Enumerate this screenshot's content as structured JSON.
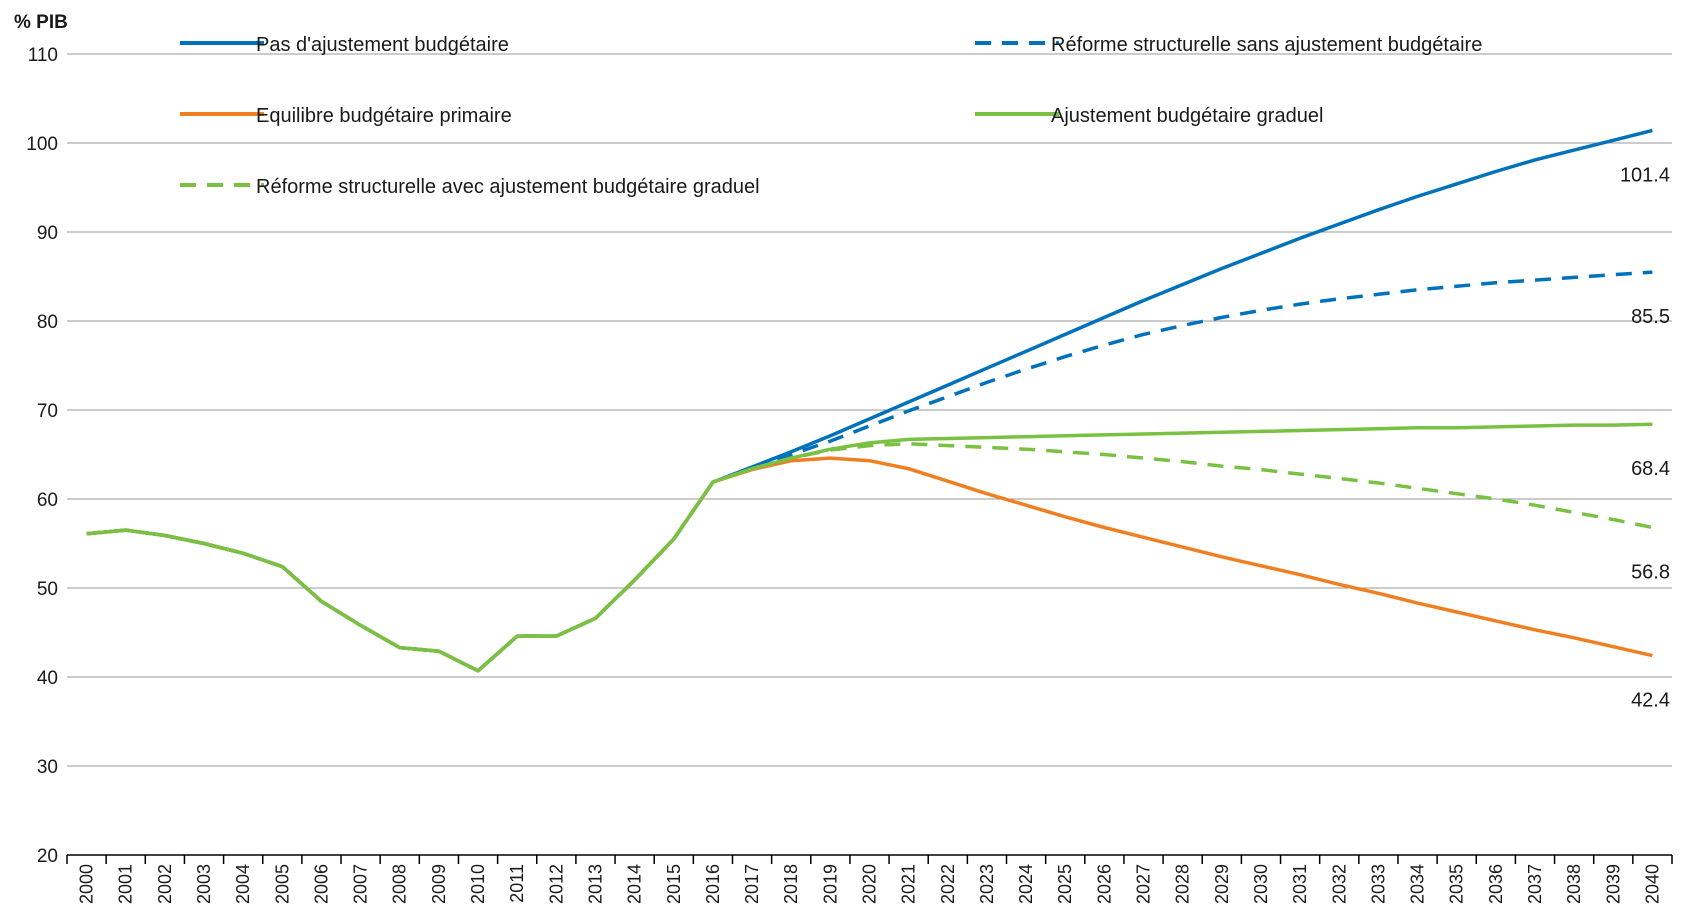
{
  "chart_data": {
    "type": "line",
    "unit_label": "% PIB",
    "ylim": [
      20,
      110
    ],
    "yticks": [
      20,
      30,
      40,
      50,
      60,
      70,
      80,
      90,
      100,
      110
    ],
    "grid": true,
    "legend_position": "top",
    "x": [
      "2000",
      "2001",
      "2002",
      "2003",
      "2004",
      "2005",
      "2006",
      "2007",
      "2008",
      "2009",
      "2010",
      "2011",
      "2012",
      "2013",
      "2014",
      "2015",
      "2016",
      "2017",
      "2018",
      "2019",
      "2020",
      "2021",
      "2022",
      "2023",
      "2024",
      "2025",
      "2026",
      "2027",
      "2028",
      "2029",
      "2030",
      "2031",
      "2032",
      "2033",
      "2034",
      "2035",
      "2036",
      "2037",
      "2038",
      "2039",
      "2040"
    ],
    "series": [
      {
        "name": "Pas d'ajustement budgétaire",
        "color": "#0072bc",
        "dash": "solid",
        "end_label": "101.4",
        "values": [
          56.1,
          56.5,
          55.9,
          55.0,
          53.9,
          52.4,
          48.5,
          45.8,
          43.3,
          42.9,
          40.7,
          44.6,
          44.6,
          46.6,
          50.9,
          55.5,
          61.9,
          63.6,
          65.3,
          67.1,
          69.0,
          70.9,
          72.8,
          74.7,
          76.6,
          78.5,
          80.4,
          82.3,
          84.1,
          85.9,
          87.6,
          89.3,
          90.9,
          92.5,
          94.0,
          95.4,
          96.8,
          98.1,
          99.2,
          100.3,
          101.4
        ]
      },
      {
        "name": "Réforme structurelle sans ajustement budgétaire",
        "color": "#0072bc",
        "dash": "dashed",
        "end_label": "85.5",
        "values": [
          56.1,
          56.5,
          55.9,
          55.0,
          53.9,
          52.4,
          48.5,
          45.8,
          43.3,
          42.9,
          40.7,
          44.6,
          44.6,
          46.6,
          50.9,
          55.5,
          61.9,
          63.5,
          65.0,
          66.5,
          68.2,
          69.9,
          71.5,
          73.1,
          74.6,
          76.0,
          77.3,
          78.5,
          79.5,
          80.4,
          81.2,
          81.9,
          82.5,
          83.0,
          83.5,
          83.9,
          84.3,
          84.6,
          84.9,
          85.2,
          85.5
        ]
      },
      {
        "name": "Equilibre budgétaire primaire",
        "color": "#f07f22",
        "dash": "solid",
        "end_label": "42.4",
        "values": [
          56.1,
          56.5,
          55.9,
          55.0,
          53.9,
          52.4,
          48.5,
          45.8,
          43.3,
          42.9,
          40.7,
          44.6,
          44.6,
          46.6,
          50.9,
          55.5,
          61.9,
          63.3,
          64.3,
          64.6,
          64.3,
          63.4,
          62.0,
          60.6,
          59.3,
          58.0,
          56.8,
          55.7,
          54.6,
          53.5,
          52.5,
          51.5,
          50.4,
          49.4,
          48.3,
          47.3,
          46.3,
          45.3,
          44.4,
          43.4,
          42.4
        ]
      },
      {
        "name": "Ajustement budgétaire graduel",
        "color": "#7ac143",
        "dash": "solid",
        "end_label": "68.4",
        "values": [
          56.1,
          56.5,
          55.9,
          55.0,
          53.9,
          52.4,
          48.5,
          45.8,
          43.3,
          42.9,
          40.7,
          44.6,
          44.6,
          46.6,
          50.9,
          55.5,
          61.9,
          63.4,
          64.6,
          65.6,
          66.3,
          66.7,
          66.8,
          66.9,
          67.0,
          67.1,
          67.2,
          67.3,
          67.4,
          67.5,
          67.6,
          67.7,
          67.8,
          67.9,
          68.0,
          68.0,
          68.1,
          68.2,
          68.3,
          68.3,
          68.4
        ]
      },
      {
        "name": "Réforme structurelle avec ajustement budgétaire graduel",
        "color": "#7ac143",
        "dash": "dashed",
        "end_label": "56.8",
        "values": [
          56.1,
          56.5,
          55.9,
          55.0,
          53.9,
          52.4,
          48.5,
          45.8,
          43.3,
          42.9,
          40.7,
          44.6,
          44.6,
          46.6,
          50.9,
          55.5,
          61.9,
          63.4,
          64.6,
          65.5,
          66.0,
          66.2,
          66.0,
          65.8,
          65.6,
          65.3,
          65.0,
          64.6,
          64.2,
          63.7,
          63.3,
          62.8,
          62.3,
          61.8,
          61.2,
          60.6,
          60.0,
          59.3,
          58.5,
          57.7,
          56.8
        ]
      }
    ]
  }
}
